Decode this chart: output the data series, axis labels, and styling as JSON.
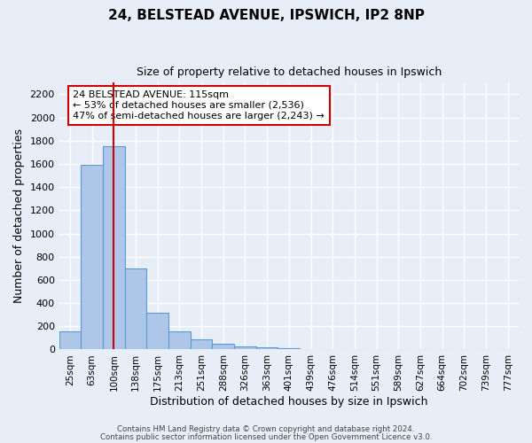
{
  "title": "24, BELSTEAD AVENUE, IPSWICH, IP2 8NP",
  "subtitle": "Size of property relative to detached houses in Ipswich",
  "xlabel": "Distribution of detached houses by size in Ipswich",
  "ylabel": "Number of detached properties",
  "bin_labels": [
    "25sqm",
    "63sqm",
    "100sqm",
    "138sqm",
    "175sqm",
    "213sqm",
    "251sqm",
    "288sqm",
    "326sqm",
    "363sqm",
    "401sqm",
    "439sqm",
    "476sqm",
    "514sqm",
    "551sqm",
    "589sqm",
    "627sqm",
    "664sqm",
    "702sqm",
    "739sqm",
    "777sqm"
  ],
  "bar_values": [
    160,
    1590,
    1750,
    700,
    315,
    155,
    85,
    50,
    25,
    18,
    13,
    5,
    0,
    0,
    0,
    0,
    0,
    0,
    0,
    0,
    0
  ],
  "bar_color": "#aec6e8",
  "bar_edge_color": "#5b9bd5",
  "red_line_x": 2.0,
  "red_line_color": "#cc0000",
  "annotation_title": "24 BELSTEAD AVENUE: 115sqm",
  "annotation_line1": "← 53% of detached houses are smaller (2,536)",
  "annotation_line2": "47% of semi-detached houses are larger (2,243) →",
  "annotation_box_color": "#ffffff",
  "annotation_box_edge": "#cc0000",
  "ylim": [
    0,
    2300
  ],
  "yticks": [
    0,
    200,
    400,
    600,
    800,
    1000,
    1200,
    1400,
    1600,
    1800,
    2000,
    2200
  ],
  "background_color": "#e8eef8",
  "grid_color": "#ffffff",
  "footer1": "Contains HM Land Registry data © Crown copyright and database right 2024.",
  "footer2": "Contains public sector information licensed under the Open Government Licence v3.0."
}
